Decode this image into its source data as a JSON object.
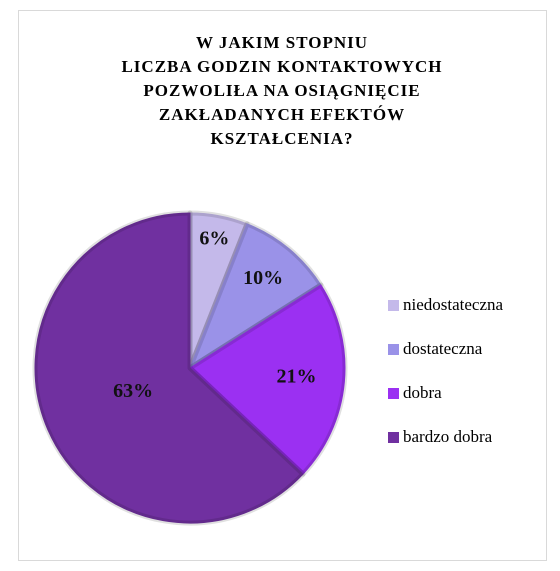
{
  "chart_data": {
    "type": "pie",
    "title": [
      "W JAKIM STOPNIU",
      "LICZBA GODZIN KONTAKTOWYCH",
      "POZWOLIŁA NA OSIĄGNIĘCIE",
      "ZAKŁADANYCH EFEKTÓW",
      "KSZTAŁCENIA?"
    ],
    "categories": [
      "niedostateczna",
      "dostateczna",
      "dobra",
      "bardzo dobra"
    ],
    "values": [
      6,
      10,
      21,
      63
    ],
    "value_labels": [
      "6%",
      "10%",
      "21%",
      "63%"
    ],
    "colors": [
      "#c4b9ea",
      "#9a92e8",
      "#9b30f2",
      "#7030a0"
    ],
    "legend": "right"
  }
}
